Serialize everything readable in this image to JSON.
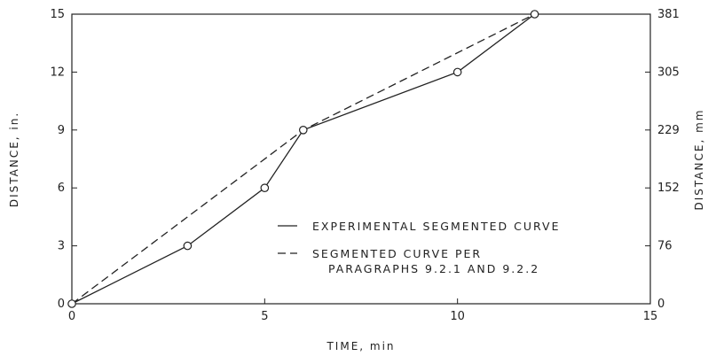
{
  "chart_data": {
    "type": "line",
    "title": "",
    "xlabel": "TIME, min",
    "ylabel_left": "DISTANCE, in.",
    "ylabel_right": "DISTANCE, mm",
    "xlim": [
      0,
      15
    ],
    "ylim": [
      0,
      15
    ],
    "x_ticks": [
      "0",
      "5",
      "10",
      "15"
    ],
    "y_ticks_left": [
      "0",
      "3",
      "6",
      "9",
      "12",
      "15"
    ],
    "y_ticks_right": [
      "0",
      "76",
      "152",
      "229",
      "305",
      "381"
    ],
    "grid": false,
    "legend_position": "lower-right",
    "series": [
      {
        "name": "EXPERIMENTAL SEGMENTED CURVE",
        "style": "solid",
        "markers": true,
        "x": [
          0,
          3,
          5,
          6,
          10,
          12
        ],
        "y": [
          0,
          3,
          6,
          9,
          12,
          15
        ]
      },
      {
        "name_lines": [
          "SEGMENTED CURVE PER",
          "PARAGRAPHS 9.2.1 AND 9.2.2"
        ],
        "style": "dashed",
        "markers": false,
        "x": [
          0,
          6,
          12
        ],
        "y": [
          0,
          9,
          15
        ]
      }
    ]
  }
}
